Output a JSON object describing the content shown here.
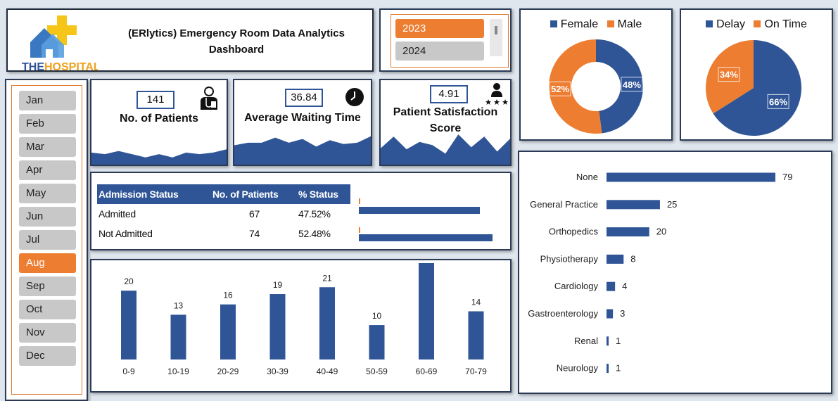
{
  "header": {
    "logo_text_a": "THE",
    "logo_text_b": "HOSPITAL",
    "title_line1": "(ERlytics) Emergency Room Data Analytics",
    "title_line2": "Dashboard"
  },
  "year_slicer": {
    "items": [
      {
        "label": "2023",
        "selected": true
      },
      {
        "label": "2024",
        "selected": false
      }
    ]
  },
  "month_slicer": {
    "items": [
      {
        "label": "Jan",
        "selected": false
      },
      {
        "label": "Feb",
        "selected": false
      },
      {
        "label": "Mar",
        "selected": false
      },
      {
        "label": "Apr",
        "selected": false
      },
      {
        "label": "May",
        "selected": false
      },
      {
        "label": "Jun",
        "selected": false
      },
      {
        "label": "Jul",
        "selected": false
      },
      {
        "label": "Aug",
        "selected": true
      },
      {
        "label": "Sep",
        "selected": false
      },
      {
        "label": "Oct",
        "selected": false
      },
      {
        "label": "Nov",
        "selected": false
      },
      {
        "label": "Dec",
        "selected": false
      }
    ]
  },
  "kpis": {
    "patients": {
      "value": "141",
      "label": "No. of Patients",
      "icon": "doctor-icon"
    },
    "waiting": {
      "value": "36.84",
      "label": "Average Waiting Time",
      "icon": "clock-icon"
    },
    "satisfaction": {
      "value": "4.91",
      "label_line1": "Patient Satisfaction",
      "label_line2": "Score",
      "icon": "rated-user-icon"
    }
  },
  "admission": {
    "headers": [
      "Admission Status",
      "No. of Patients",
      "% Status"
    ],
    "rows": [
      {
        "status": "Admitted",
        "count": "67",
        "pct": "47.52%",
        "bar_fraction": 0.4752
      },
      {
        "status": "Not Admitted",
        "count": "74",
        "pct": "52.48%",
        "bar_fraction": 0.5248
      }
    ]
  },
  "colors": {
    "blue": "#2f5597",
    "orange": "#ed7d31",
    "slicer_gray": "#c8c8c8",
    "frame": "#2b3a55"
  },
  "chart_data": [
    {
      "type": "bar",
      "categories": [
        "0-9",
        "10-19",
        "20-29",
        "30-39",
        "40-49",
        "50-59",
        "60-69",
        "70-79"
      ],
      "values": [
        20,
        13,
        16,
        19,
        21,
        10,
        28,
        14
      ],
      "ylim": [
        0,
        28
      ],
      "grid": false
    },
    {
      "type": "pie",
      "donut": true,
      "labels": [
        "Female",
        "Male"
      ],
      "values": [
        48,
        52
      ],
      "value_labels": [
        "48%",
        "52%"
      ],
      "colors": [
        "#2f5597",
        "#ed7d31"
      ],
      "legend": "top"
    },
    {
      "type": "pie",
      "donut": false,
      "labels": [
        "Delay",
        "On Time"
      ],
      "values": [
        66,
        34
      ],
      "value_labels": [
        "66%",
        "34%"
      ],
      "colors": [
        "#2f5597",
        "#ed7d31"
      ],
      "legend": "top"
    },
    {
      "type": "bar",
      "orientation": "horizontal",
      "categories": [
        "None",
        "General Practice",
        "Orthopedics",
        "Physiotherapy",
        "Cardiology",
        "Gastroenterology",
        "Renal",
        "Neurology"
      ],
      "values": [
        79,
        25,
        20,
        8,
        4,
        3,
        1,
        1
      ],
      "xlim": [
        0,
        79
      ]
    },
    {
      "type": "area",
      "series": [
        {
          "values": [
            14,
            13,
            15,
            13,
            11,
            13,
            11,
            14,
            13,
            14,
            16
          ]
        }
      ]
    },
    {
      "type": "area",
      "series": [
        {
          "values": [
            33,
            35,
            35,
            39,
            35,
            38,
            32,
            37,
            34,
            35,
            40
          ]
        }
      ]
    },
    {
      "type": "area",
      "series": [
        {
          "values": [
            3.5,
            4.6,
            3.4,
            4.1,
            3.8,
            3.0,
            4.8,
            3.6,
            4.6,
            3.2,
            4.4
          ]
        }
      ]
    }
  ]
}
